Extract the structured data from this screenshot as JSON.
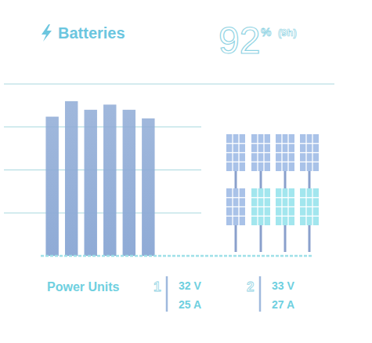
{
  "header": {
    "title": "Batteries",
    "charge": "92",
    "unit": "%",
    "duration": "(9h)"
  },
  "chart_data": {
    "type": "bar",
    "categories": [
      null,
      null,
      null,
      null,
      null,
      null
    ],
    "values": [
      81,
      90,
      85,
      88,
      85,
      80
    ],
    "color": "#8fabd6",
    "ylim": [
      0,
      100
    ],
    "yticks": [
      0,
      25,
      50,
      75,
      100
    ],
    "grid": true,
    "tick_labels": false
  },
  "solar_panels": [
    {
      "top": "#a9c2e8",
      "bottom": "#a9c2e8"
    },
    {
      "top": "#a9c2e8",
      "bottom": "#a2e6ee"
    },
    {
      "top": "#a9c2e8",
      "bottom": "#a2e6ee"
    },
    {
      "top": "#a9c2e8",
      "bottom": "#a2e6ee"
    }
  ],
  "power_units": {
    "title": "Power Units",
    "units": [
      {
        "label": "1",
        "voltage": "32 V",
        "current": "25 A"
      },
      {
        "label": "2",
        "voltage": "33 V",
        "current": "27 A"
      }
    ]
  }
}
